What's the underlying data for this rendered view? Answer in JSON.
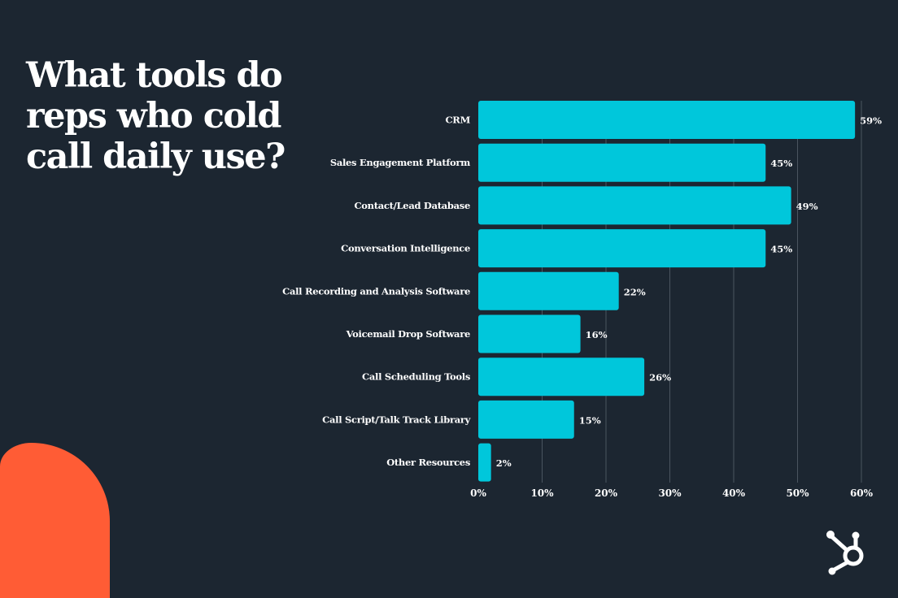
{
  "chart_data": {
    "type": "bar",
    "orientation": "horizontal",
    "title": "What tools do reps who cold call daily use?",
    "categories": [
      "CRM",
      "Sales Engagement Platform",
      "Contact/Lead Database",
      "Conversation Intelligence",
      "Call Recording and Analysis Software",
      "Voicemail Drop Software",
      "Call Scheduling Tools",
      "Call Script/Talk Track Library",
      "Other Resources"
    ],
    "values": [
      59,
      45,
      49,
      45,
      22,
      16,
      26,
      15,
      2
    ],
    "data_labels": [
      "59%",
      "45%",
      "49%",
      "45%",
      "22%",
      "16%",
      "26%",
      "15%",
      "2%"
    ],
    "xlim": [
      0,
      60
    ],
    "xticks": [
      0,
      10,
      20,
      30,
      40,
      50,
      60
    ],
    "xtick_labels": [
      "0%",
      "10%",
      "20%",
      "30%",
      "40%",
      "50%",
      "60%"
    ],
    "xlabel": "",
    "ylabel": "",
    "grid": true,
    "colors": {
      "bar": "#00c7db",
      "background": "#1c2631",
      "grid": "#4a5560",
      "text": "#ffffff",
      "accent": "#ff5c35"
    }
  },
  "title_lines": [
    "What tools do",
    "reps who cold",
    "call daily use?"
  ]
}
